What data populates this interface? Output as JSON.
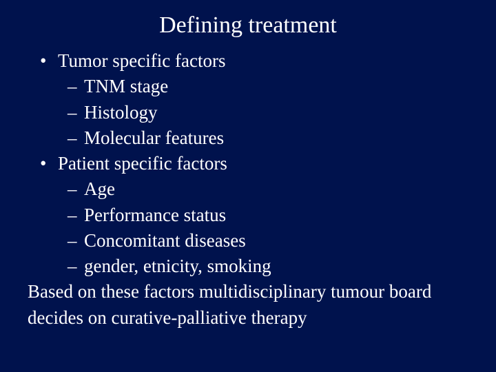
{
  "background_color": "#00124d",
  "text_color": "#ffffff",
  "font_family": "Times New Roman",
  "title": "Defining treatment",
  "title_fontsize": 34,
  "body_fontsize": 27,
  "bullets": {
    "group1": {
      "heading": "Tumor specific factors",
      "items": [
        "TNM stage",
        "Histology",
        "Molecular features"
      ]
    },
    "group2": {
      "heading": "Patient specific factors",
      "items": [
        "Age",
        "Performance status",
        "Concomitant diseases",
        "gender, etnicity, smoking"
      ]
    }
  },
  "closing": "Based on these factors multidisciplinary  tumour board decides on curative-palliative therapy",
  "bullet_char": "•",
  "dash_char": "–"
}
